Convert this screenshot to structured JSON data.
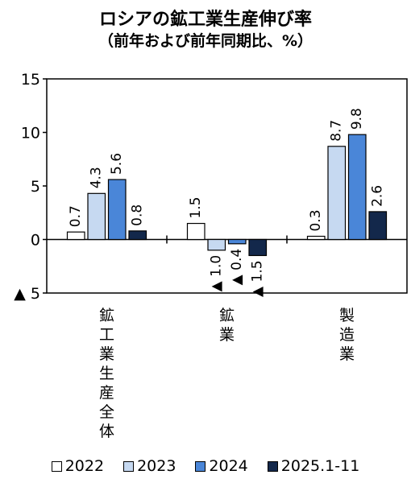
{
  "header": {
    "title": "ロシアの鉱工業生産伸び率",
    "subtitle": "（前年および前年同期比、%）"
  },
  "chart_data": {
    "type": "bar",
    "categories": [
      "鉱工業生産全体",
      "鉱業",
      "製造業"
    ],
    "series": [
      {
        "name": "2022",
        "values": [
          0.7,
          1.5,
          0.3
        ],
        "color": "#ffffff"
      },
      {
        "name": "2023",
        "values": [
          4.3,
          -1.0,
          8.7
        ],
        "color": "#c6d9f1"
      },
      {
        "name": "2024",
        "values": [
          5.6,
          -0.4,
          9.8
        ],
        "color": "#4a86d8"
      },
      {
        "name": "2025.1-11",
        "values": [
          0.8,
          -1.5,
          2.6
        ],
        "color": "#13284b"
      }
    ],
    "data_labels": [
      [
        "0.7",
        "1.5",
        "0.3"
      ],
      [
        "4.3",
        "▲ 1.0",
        "8.7"
      ],
      [
        "5.6",
        "▲ 0.4",
        "9.8"
      ],
      [
        "0.8",
        "▲ 1.5",
        "2.6"
      ]
    ],
    "y_ticks": [
      15,
      10,
      5,
      0,
      -5
    ],
    "y_tick_labels": [
      "15",
      "10",
      "5",
      "0",
      "▲ 5"
    ],
    "ylim": [
      -5,
      15
    ],
    "grid": false,
    "legend_position": "bottom"
  }
}
